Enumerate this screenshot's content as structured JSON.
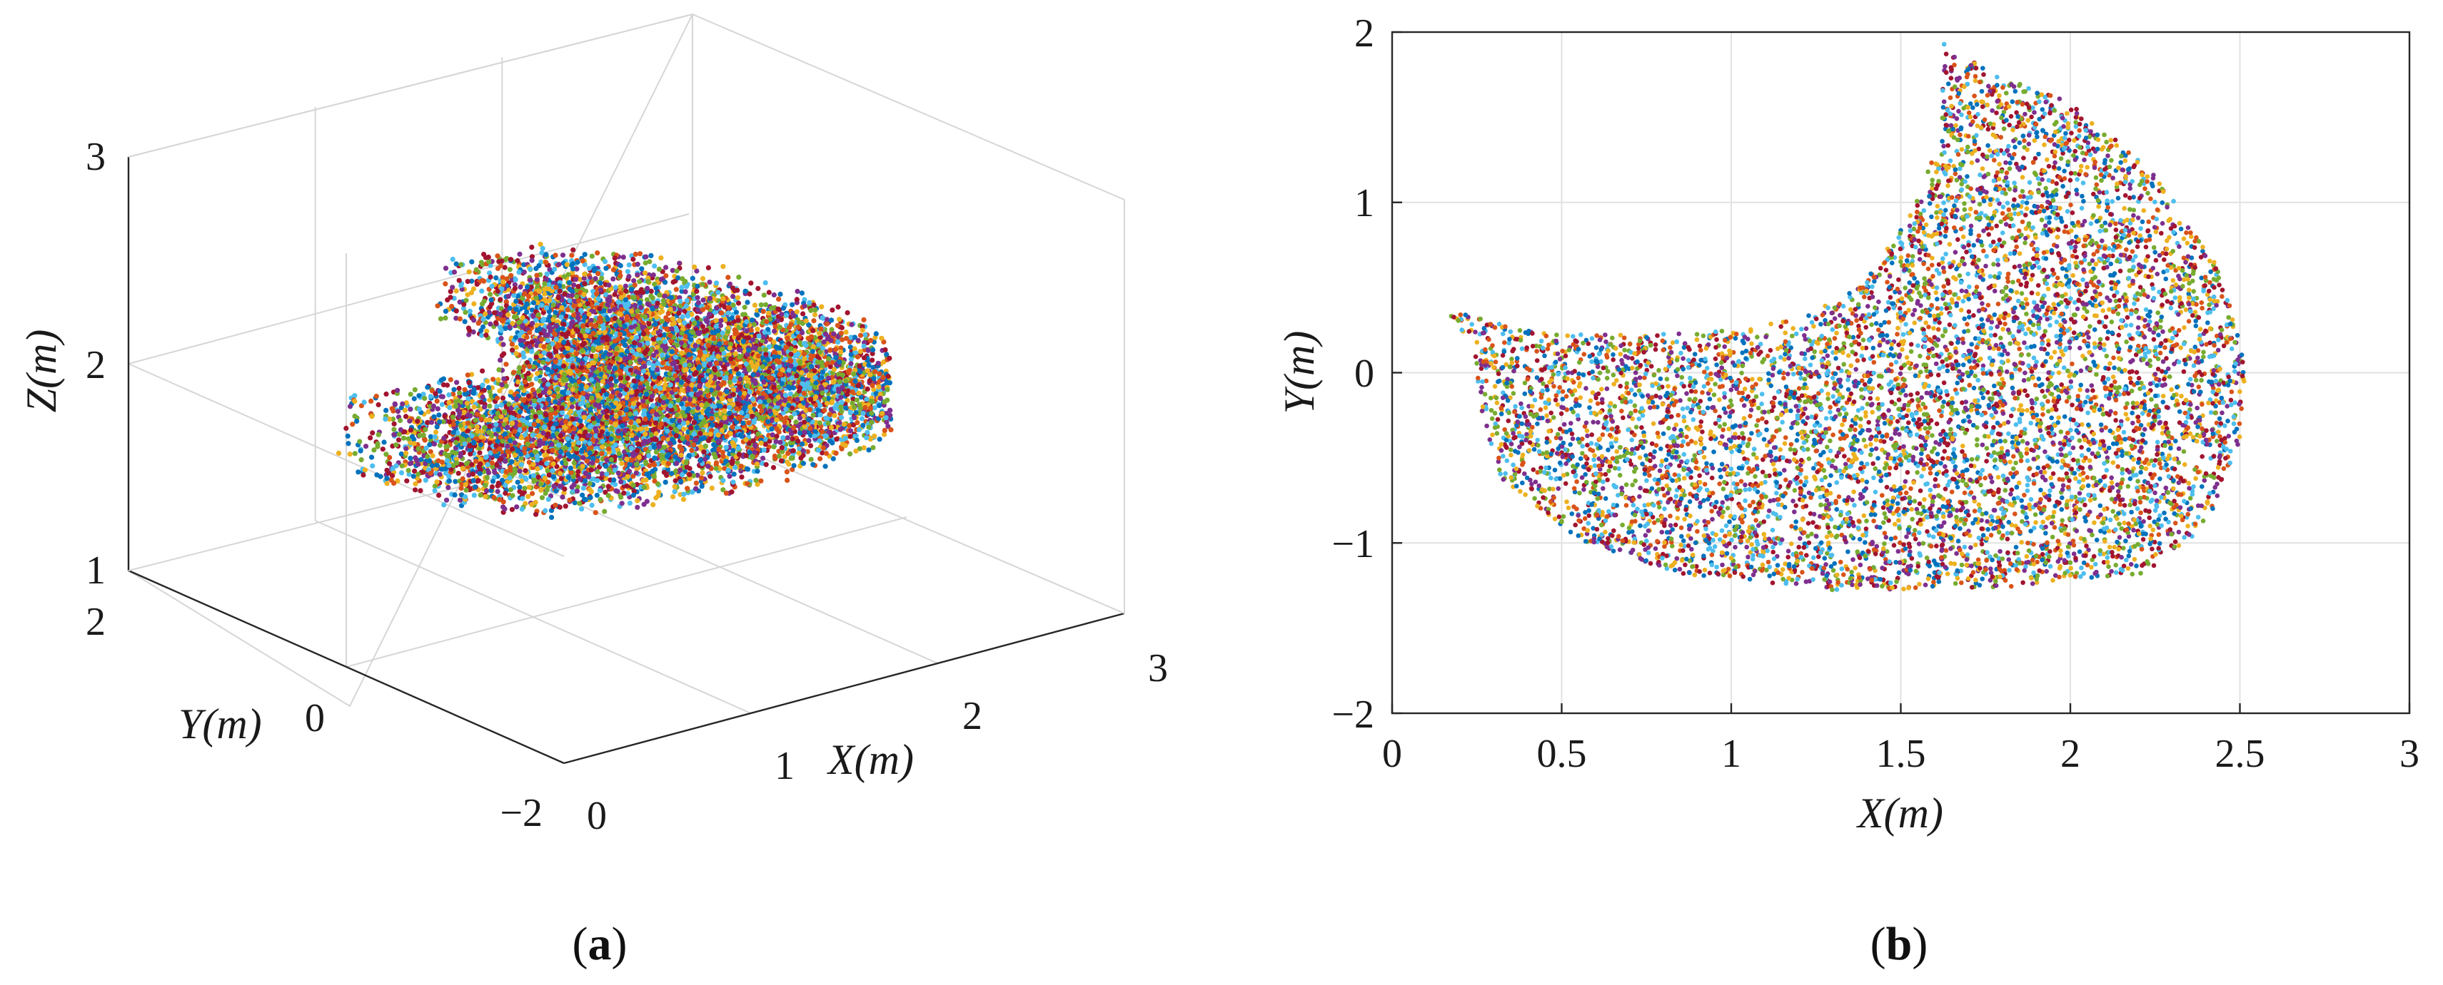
{
  "colors": [
    "#0072bd",
    "#d95319",
    "#edb120",
    "#7e2f8e",
    "#77ac30",
    "#4dbeee",
    "#a2142f"
  ],
  "chart_data": [
    {
      "type": "scatter",
      "panel": "a",
      "panel_label_open": "(",
      "panel_label": "a",
      "panel_label_close": ")",
      "view": "3d",
      "xlabel": "X(m)",
      "ylabel": "Y(m)",
      "zlabel": "Z(m)",
      "xlim": [
        0,
        3
      ],
      "ylim": [
        -2,
        2
      ],
      "zlim": [
        1,
        3
      ],
      "xticks": [
        "0",
        "1",
        "2",
        "3"
      ],
      "yticks": [
        "-2",
        "0",
        "2"
      ],
      "zticks": [
        "1",
        "2",
        "3"
      ],
      "grid": true,
      "point_cloud": {
        "z_center": 2.0,
        "z_spread": 0.2,
        "count": 9000
      }
    },
    {
      "type": "scatter",
      "panel": "b",
      "panel_label_open": "(",
      "panel_label": "b",
      "panel_label_close": ")",
      "view": "top (X-Y projection)",
      "xlabel": "X(m)",
      "ylabel": "Y(m)",
      "xlim": [
        0,
        3
      ],
      "ylim": [
        -2,
        2
      ],
      "xticks": [
        "0",
        "0.5",
        "1",
        "1.5",
        "2",
        "2.5",
        "3"
      ],
      "yticks": [
        "-2",
        "-1",
        "0",
        "1",
        "2"
      ],
      "grid": true,
      "region_outline_xy": [
        [
          0.14,
          0.38
        ],
        [
          0.26,
          0.32
        ],
        [
          0.42,
          0.24
        ],
        [
          0.7,
          0.22
        ],
        [
          1.0,
          0.25
        ],
        [
          1.2,
          0.32
        ],
        [
          1.38,
          0.5
        ],
        [
          1.52,
          0.9
        ],
        [
          1.62,
          1.4
        ],
        [
          1.62,
          1.95
        ],
        [
          1.78,
          1.74
        ],
        [
          1.98,
          1.62
        ],
        [
          2.22,
          1.24
        ],
        [
          2.42,
          0.7
        ],
        [
          2.52,
          0.1
        ],
        [
          2.5,
          -0.4
        ],
        [
          2.4,
          -0.9
        ],
        [
          2.22,
          -1.18
        ],
        [
          1.8,
          -1.26
        ],
        [
          1.3,
          -1.28
        ],
        [
          0.85,
          -1.18
        ],
        [
          0.55,
          -0.98
        ],
        [
          0.32,
          -0.62
        ],
        [
          0.26,
          -0.2
        ],
        [
          0.24,
          0.18
        ]
      ],
      "point_count": 7500
    }
  ]
}
